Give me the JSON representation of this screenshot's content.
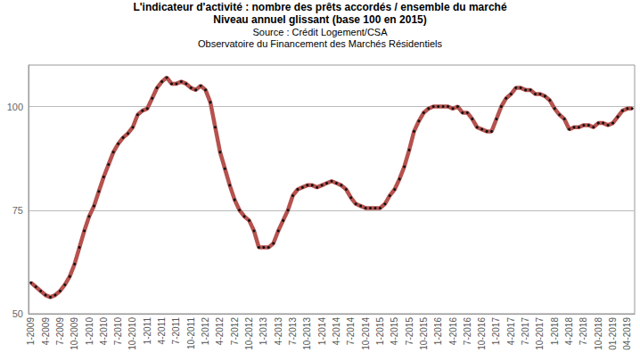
{
  "chart_data": {
    "type": "line",
    "title": "L'indicateur d'activité : nombre des prêts accordés / ensemble du marché\nNiveau annuel glissant (base 100 en 2015)",
    "subtitle": "Source : Crédit Logement/CSA\nObservatoire du Financement des Marchés Résidentiels",
    "categories": [
      "1-2009",
      null,
      null,
      "4-2009",
      null,
      null,
      "7-2009",
      null,
      null,
      "10-2009",
      null,
      null,
      "1-2010",
      null,
      null,
      "4-2010",
      null,
      null,
      "7-2010",
      null,
      null,
      "10-2010",
      null,
      null,
      "1-2011",
      null,
      null,
      "4-2011",
      null,
      null,
      "7-2011",
      null,
      null,
      "10-2011",
      null,
      null,
      "1-2012",
      null,
      null,
      "4-2012",
      null,
      null,
      "7-2012",
      null,
      null,
      "10-2012",
      null,
      null,
      "1-2013",
      null,
      null,
      "4-2013",
      null,
      null,
      "7-2013",
      null,
      null,
      "10-2013",
      null,
      null,
      "1-2014",
      null,
      null,
      "4-2014",
      null,
      null,
      "7-2014",
      null,
      null,
      "10-2014",
      null,
      null,
      "1-2015",
      null,
      null,
      "4-2015",
      null,
      null,
      "7-2015",
      null,
      null,
      "10-2015",
      null,
      null,
      "1-2016",
      null,
      null,
      "4-2016",
      null,
      null,
      "7-2016",
      null,
      null,
      "10-2016",
      null,
      null,
      "1-2017",
      null,
      null,
      "4-2017",
      null,
      null,
      "7-2017",
      null,
      null,
      "10-2017",
      null,
      null,
      "1-2018",
      null,
      null,
      "4-2018",
      null,
      null,
      "7-2018",
      null,
      null,
      "10-2018",
      null,
      null,
      "01-2019",
      null,
      null,
      "04-2019",
      null
    ],
    "values": [
      57.5,
      56.5,
      55.5,
      54.5,
      54,
      54.5,
      55.5,
      57,
      59,
      62,
      66,
      70,
      73.5,
      76,
      79.5,
      83,
      86,
      89,
      91,
      92.5,
      93.5,
      95,
      98,
      99,
      99.5,
      102,
      104.5,
      106,
      107,
      105.5,
      105.5,
      106,
      105.5,
      104.5,
      104,
      105,
      104,
      101,
      95,
      89,
      85,
      81,
      77.5,
      75,
      73.5,
      72.5,
      70,
      66,
      66,
      66,
      67,
      70,
      72.5,
      75,
      78.5,
      80,
      80.5,
      81,
      81,
      80.5,
      81,
      81.5,
      82,
      81.5,
      81,
      80,
      78,
      76.5,
      76,
      75.5,
      75.5,
      75.5,
      75.5,
      76.5,
      78.5,
      80,
      82.5,
      85.5,
      89.5,
      94,
      96.5,
      98.5,
      99.5,
      100,
      100,
      100,
      100,
      99.5,
      100,
      98.5,
      98.5,
      97,
      95,
      94.5,
      94,
      94,
      97,
      100,
      102,
      103,
      104.5,
      104.5,
      104,
      104,
      103,
      103,
      102.5,
      101.5,
      99.5,
      98,
      97,
      94.5,
      95,
      95,
      95.5,
      95.5,
      95,
      96,
      96,
      95.5,
      96,
      97.5,
      99,
      99.5,
      99.5
    ],
    "color": "#b5524e",
    "marker": "circle",
    "ylim": [
      50,
      110
    ],
    "yticks": [
      50,
      75,
      100
    ],
    "grid": true
  }
}
